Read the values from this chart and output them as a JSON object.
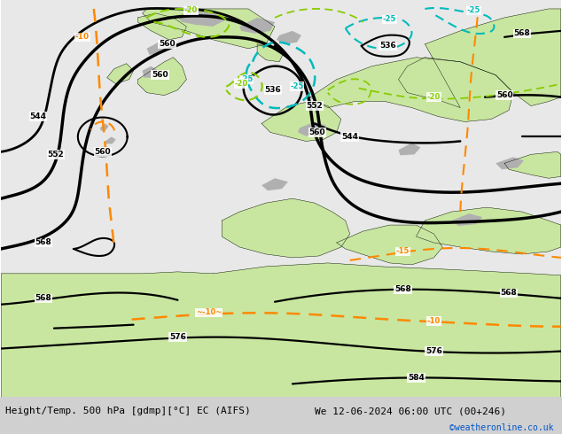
{
  "title_left": "Height/Temp. 500 hPa [gdmp][°C] EC (AIFS)",
  "title_right": "We 12-06-2024 06:00 UTC (00+246)",
  "credit": "©weatheronline.co.uk",
  "land_color": "#c8e6a0",
  "sea_color": "#e8e8e8",
  "gray_color": "#b0b0b0",
  "figsize": [
    6.34,
    4.9
  ],
  "dpi": 100,
  "footer_bg": "#d8d8d8",
  "black_color": "#000000",
  "cyan_color": "#00bbbb",
  "green_color": "#88cc00",
  "orange_color": "#ff8800",
  "title_fontsize": 8,
  "credit_fontsize": 7,
  "credit_color": "#0055cc"
}
